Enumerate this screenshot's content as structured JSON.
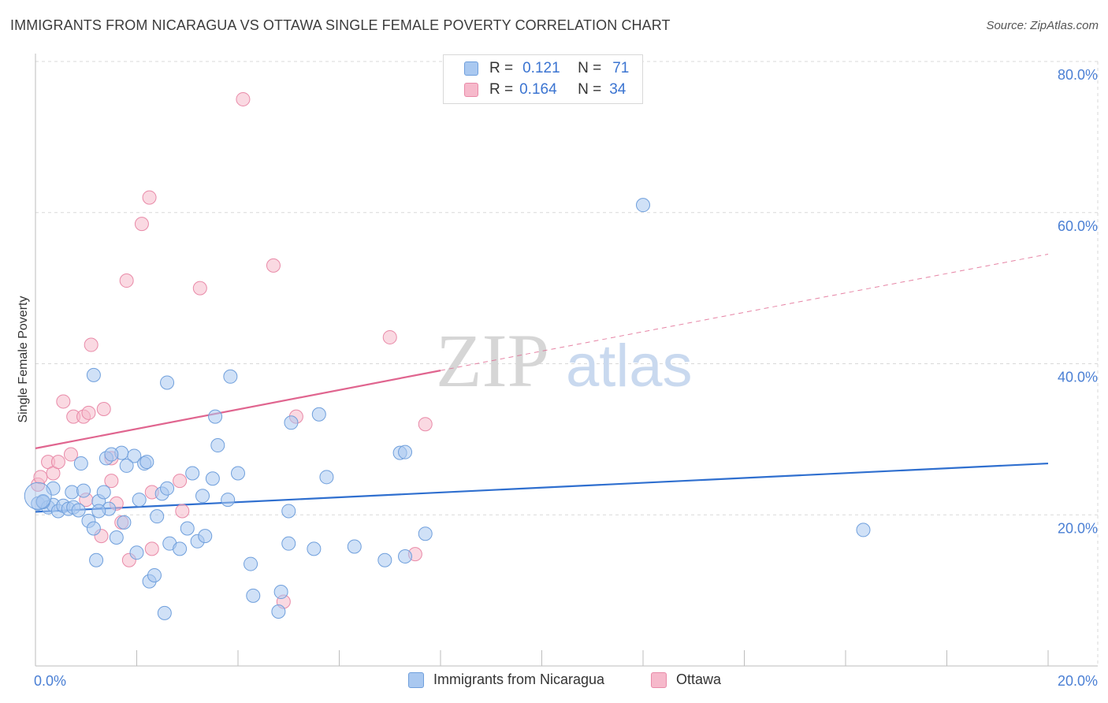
{
  "title": "IMMIGRANTS FROM NICARAGUA VS OTTAWA SINGLE FEMALE POVERTY CORRELATION CHART",
  "source": "Source: ZipAtlas.com",
  "legend": {
    "r_label": "R =",
    "n_label": "N =",
    "series": [
      {
        "r": "0.121",
        "n": "71"
      },
      {
        "r": "0.164",
        "n": "34"
      }
    ]
  },
  "bottom_legend": [
    "Immigrants from Nicaragua",
    "Ottawa"
  ],
  "watermark": {
    "zip": "ZIP",
    "atlas": "atlas"
  },
  "colors": {
    "blue_fill": "#a9c8f0",
    "blue_stroke": "#6f9fdc",
    "blue_line": "#2f6fcf",
    "pink_fill": "#f6b9cb",
    "pink_stroke": "#e98aa8",
    "pink_line": "#e0658f",
    "tick_text": "#4a7fd4",
    "grid": "#d9d9d9"
  },
  "chart_data": {
    "type": "scatter",
    "title": "IMMIGRANTS FROM NICARAGUA VS OTTAWA SINGLE FEMALE POVERTY CORRELATION CHART",
    "xlabel": "",
    "ylabel": "Single Female Poverty",
    "xlim": [
      0,
      20
    ],
    "ylim": [
      0,
      80
    ],
    "x_tick_labels": [
      "0.0%",
      "20.0%"
    ],
    "y_tick_labels": [
      "20.0%",
      "40.0%",
      "60.0%",
      "80.0%"
    ],
    "y_ticks": [
      20,
      40,
      60,
      80
    ],
    "grid": true,
    "legend_position": "top-center",
    "series": [
      {
        "name": "Immigrants from Nicaragua",
        "color": "#a9c8f0",
        "points": [
          [
            0.05,
            21.5
          ],
          [
            0.15,
            21.8
          ],
          [
            0.25,
            21.0
          ],
          [
            0.35,
            21.3
          ],
          [
            0.45,
            20.5
          ],
          [
            0.55,
            21.2
          ],
          [
            0.65,
            20.8
          ],
          [
            0.75,
            21.0
          ],
          [
            0.85,
            20.6
          ],
          [
            0.72,
            23.0
          ],
          [
            0.95,
            23.2
          ],
          [
            1.05,
            19.2
          ],
          [
            1.15,
            18.2
          ],
          [
            1.25,
            21.8
          ],
          [
            1.35,
            23.0
          ],
          [
            1.45,
            20.8
          ],
          [
            1.4,
            27.5
          ],
          [
            1.2,
            14.0
          ],
          [
            1.6,
            17.0
          ],
          [
            1.75,
            19.0
          ],
          [
            1.7,
            28.2
          ],
          [
            1.95,
            27.8
          ],
          [
            2.05,
            22.0
          ],
          [
            2.15,
            26.8
          ],
          [
            2.25,
            11.2
          ],
          [
            2.35,
            12.0
          ],
          [
            2.4,
            19.8
          ],
          [
            2.5,
            22.8
          ],
          [
            2.55,
            7.0
          ],
          [
            2.65,
            16.2
          ],
          [
            2.85,
            15.5
          ],
          [
            3.2,
            16.5
          ],
          [
            3.35,
            17.2
          ],
          [
            2.0,
            15.0
          ],
          [
            1.5,
            28.0
          ],
          [
            1.8,
            26.5
          ],
          [
            2.2,
            27.0
          ],
          [
            2.6,
            23.5
          ],
          [
            3.0,
            18.2
          ],
          [
            3.5,
            24.8
          ],
          [
            3.3,
            22.5
          ],
          [
            3.8,
            22.0
          ],
          [
            4.0,
            25.5
          ],
          [
            4.3,
            9.3
          ],
          [
            4.8,
            7.2
          ],
          [
            4.85,
            9.8
          ],
          [
            5.0,
            16.2
          ],
          [
            5.5,
            15.5
          ],
          [
            6.3,
            15.8
          ],
          [
            6.9,
            14.0
          ],
          [
            7.3,
            14.5
          ],
          [
            5.0,
            20.5
          ],
          [
            3.1,
            25.5
          ],
          [
            3.55,
            33.0
          ],
          [
            3.6,
            29.2
          ],
          [
            5.05,
            32.2
          ],
          [
            5.6,
            33.3
          ],
          [
            5.75,
            25.0
          ],
          [
            7.2,
            28.2
          ],
          [
            7.3,
            28.3
          ],
          [
            7.7,
            17.5
          ],
          [
            4.25,
            13.5
          ],
          [
            2.6,
            37.5
          ],
          [
            3.85,
            38.3
          ],
          [
            1.15,
            38.5
          ],
          [
            0.15,
            21.7
          ],
          [
            0.35,
            23.5
          ],
          [
            0.9,
            26.8
          ],
          [
            1.25,
            20.5
          ],
          [
            12.0,
            61.0
          ],
          [
            16.35,
            18.0
          ]
        ]
      },
      {
        "name": "Ottawa",
        "color": "#f6b9cb",
        "points": [
          [
            0.05,
            24.0
          ],
          [
            0.1,
            25.0
          ],
          [
            0.25,
            27.0
          ],
          [
            0.35,
            25.5
          ],
          [
            0.45,
            27.0
          ],
          [
            0.55,
            35.0
          ],
          [
            0.7,
            28.0
          ],
          [
            0.75,
            33.0
          ],
          [
            0.95,
            33.0
          ],
          [
            1.05,
            33.5
          ],
          [
            1.1,
            42.5
          ],
          [
            1.35,
            34.0
          ],
          [
            1.5,
            27.5
          ],
          [
            1.5,
            24.5
          ],
          [
            1.6,
            21.5
          ],
          [
            1.7,
            19.0
          ],
          [
            1.85,
            14.0
          ],
          [
            1.8,
            51.0
          ],
          [
            2.1,
            58.5
          ],
          [
            2.25,
            62.0
          ],
          [
            2.3,
            23.0
          ],
          [
            2.85,
            24.5
          ],
          [
            2.9,
            20.5
          ],
          [
            3.25,
            50.0
          ],
          [
            4.1,
            75.0
          ],
          [
            4.7,
            53.0
          ],
          [
            5.15,
            33.0
          ],
          [
            4.9,
            8.5
          ],
          [
            7.0,
            43.5
          ],
          [
            7.7,
            32.0
          ],
          [
            7.5,
            14.8
          ],
          [
            1.3,
            17.2
          ],
          [
            1.0,
            22.0
          ],
          [
            2.3,
            15.5
          ]
        ]
      }
    ],
    "trendlines": [
      {
        "series": "Immigrants from Nicaragua",
        "x": [
          0,
          20
        ],
        "y": [
          20.4,
          26.8
        ]
      },
      {
        "series": "Ottawa",
        "x": [
          0,
          8.0
        ],
        "y": [
          28.8,
          39.1
        ],
        "dashed_extension_to": [
          20,
          54.5
        ]
      }
    ]
  }
}
